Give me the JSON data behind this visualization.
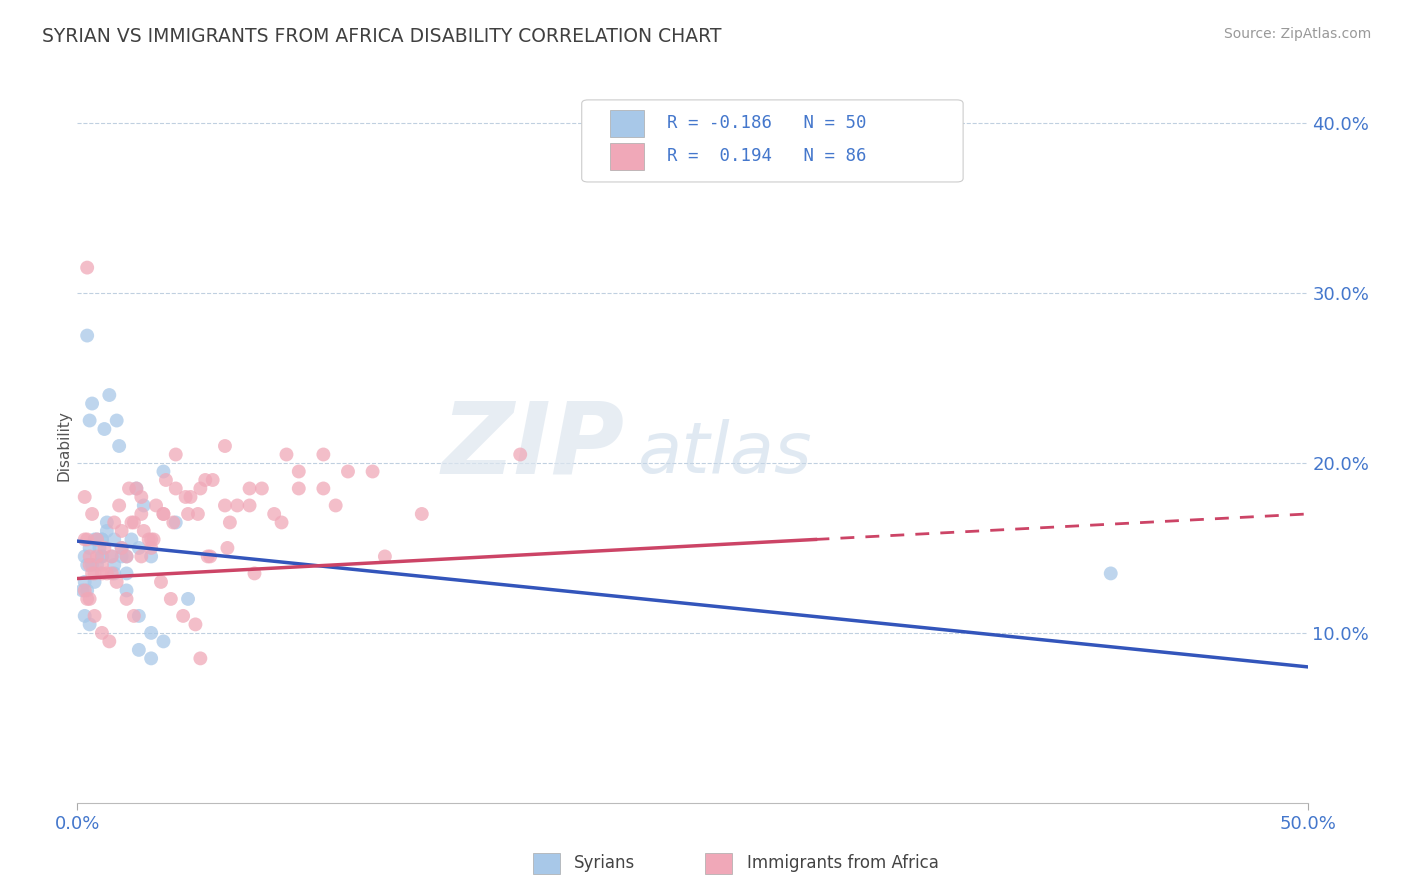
{
  "title": "SYRIAN VS IMMIGRANTS FROM AFRICA DISABILITY CORRELATION CHART",
  "source_text": "Source: ZipAtlas.com",
  "ylabel": "Disability",
  "xlim": [
    0,
    50
  ],
  "ylim": [
    0,
    42
  ],
  "yticks": [
    10,
    20,
    30,
    40
  ],
  "ytick_labels": [
    "10.0%",
    "20.0%",
    "30.0%",
    "40.0%"
  ],
  "color_syrian": "#a8c8e8",
  "color_africa": "#f0a8b8",
  "color_line_syrian": "#3355bb",
  "color_line_africa": "#cc4466",
  "color_title": "#404040",
  "color_axis_label": "#4477cc",
  "color_legend_text": "#4477cc",
  "background_color": "#ffffff",
  "watermark_zip": "ZIP",
  "watermark_atlas": "atlas",
  "syrians_x": [
    0.3,
    0.4,
    0.5,
    0.5,
    0.6,
    0.7,
    0.8,
    0.9,
    1.0,
    1.0,
    1.1,
    1.2,
    1.3,
    1.4,
    1.5,
    1.6,
    1.7,
    1.8,
    2.0,
    2.2,
    2.4,
    2.5,
    2.7,
    3.0,
    3.5,
    4.0,
    0.3,
    0.4,
    0.6,
    0.8,
    1.0,
    1.2,
    1.5,
    1.8,
    2.0,
    2.5,
    3.0,
    3.5,
    4.5,
    0.2,
    0.3,
    0.5,
    0.7,
    1.0,
    1.5,
    2.0,
    2.5,
    3.0,
    42.0,
    0.4
  ],
  "syrians_y": [
    14.5,
    14.0,
    15.0,
    22.5,
    23.5,
    15.5,
    14.0,
    15.0,
    15.5,
    14.5,
    22.0,
    16.5,
    24.0,
    14.5,
    15.5,
    22.5,
    21.0,
    15.0,
    14.5,
    15.5,
    18.5,
    15.0,
    17.5,
    14.5,
    19.5,
    16.5,
    13.0,
    12.5,
    14.0,
    15.5,
    15.5,
    16.0,
    14.0,
    14.5,
    13.5,
    11.0,
    10.0,
    9.5,
    12.0,
    12.5,
    11.0,
    10.5,
    13.0,
    14.5,
    13.5,
    12.5,
    9.0,
    8.5,
    13.5,
    27.5
  ],
  "africa_x": [
    0.3,
    0.5,
    0.7,
    0.8,
    1.0,
    1.2,
    1.5,
    1.8,
    2.0,
    2.3,
    2.6,
    2.9,
    3.2,
    3.6,
    4.0,
    4.5,
    5.0,
    5.5,
    6.0,
    7.0,
    8.0,
    9.0,
    10.0,
    12.0,
    14.0,
    0.4,
    0.6,
    0.8,
    1.1,
    1.4,
    1.7,
    2.1,
    2.4,
    2.7,
    3.1,
    3.5,
    3.9,
    4.4,
    4.9,
    5.4,
    6.2,
    7.5,
    8.5,
    10.5,
    0.3,
    0.5,
    0.7,
    1.0,
    1.3,
    1.6,
    2.0,
    2.3,
    2.6,
    3.0,
    3.4,
    3.8,
    4.3,
    4.8,
    5.3,
    6.1,
    7.2,
    8.3,
    10.0,
    12.5,
    0.4,
    0.6,
    1.0,
    1.4,
    1.8,
    2.2,
    2.6,
    3.0,
    3.5,
    4.0,
    4.6,
    5.2,
    6.0,
    7.0,
    9.0,
    11.0,
    6.5,
    18.0,
    5.0,
    0.4,
    0.3,
    0.5
  ],
  "africa_y": [
    15.5,
    14.5,
    13.5,
    15.5,
    14.0,
    13.5,
    16.5,
    15.0,
    14.5,
    16.5,
    18.0,
    15.5,
    17.5,
    19.0,
    18.5,
    17.0,
    18.5,
    19.0,
    17.5,
    18.5,
    17.0,
    19.5,
    20.5,
    19.5,
    17.0,
    12.0,
    13.5,
    14.5,
    15.0,
    13.5,
    17.5,
    18.5,
    18.5,
    16.0,
    15.5,
    17.0,
    16.5,
    18.0,
    17.0,
    14.5,
    16.5,
    18.5,
    20.5,
    17.5,
    18.0,
    12.0,
    11.0,
    10.0,
    9.5,
    13.0,
    12.0,
    11.0,
    14.5,
    15.0,
    13.0,
    12.0,
    11.0,
    10.5,
    14.5,
    15.0,
    13.5,
    16.5,
    18.5,
    14.5,
    15.5,
    17.0,
    13.5,
    14.5,
    16.0,
    16.5,
    17.0,
    15.5,
    17.0,
    20.5,
    18.0,
    19.0,
    21.0,
    17.5,
    18.5,
    19.5,
    17.5,
    20.5,
    8.5,
    31.5,
    12.5,
    14.0
  ],
  "reg_syrian_x0": 0,
  "reg_syrian_y0": 15.4,
  "reg_syrian_x1": 50,
  "reg_syrian_y1": 8.0,
  "reg_africa_solid_x0": 0,
  "reg_africa_solid_y0": 13.2,
  "reg_africa_solid_x1": 30,
  "reg_africa_solid_y1": 15.5,
  "reg_africa_dash_x0": 30,
  "reg_africa_dash_y0": 15.5,
  "reg_africa_dash_x1": 50,
  "reg_africa_dash_y1": 17.0
}
